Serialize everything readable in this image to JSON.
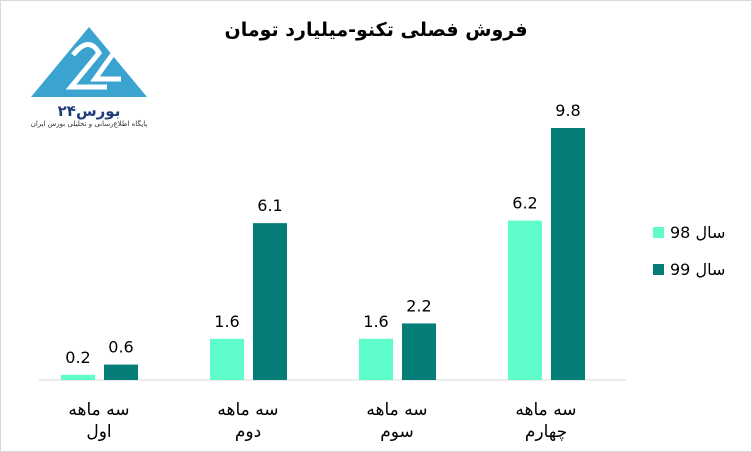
{
  "logo": {
    "name": "بورس۲۴",
    "subtitle": "پایگاه اطلاع‌رسانی و تحلیلی بورس ایران"
  },
  "chart_data": {
    "type": "bar",
    "title": "فروش فصلی تکنو-میلیارد تومان",
    "categories": [
      [
        "سه ماهه",
        "اول"
      ],
      [
        "سه ماهه",
        "دوم"
      ],
      [
        "سه ماهه",
        "سوم"
      ],
      [
        "سه ماهه",
        "چهارم"
      ]
    ],
    "series": [
      {
        "name": "سال 98",
        "color": "#5ffccb",
        "values": [
          0.2,
          1.6,
          1.6,
          6.2
        ]
      },
      {
        "name": "سال 99",
        "color": "#047c78",
        "values": [
          0.6,
          6.1,
          2.2,
          9.8
        ]
      }
    ],
    "ylim": [
      0,
      9.8
    ],
    "grid": false,
    "legend": "right",
    "data_labels": true
  }
}
